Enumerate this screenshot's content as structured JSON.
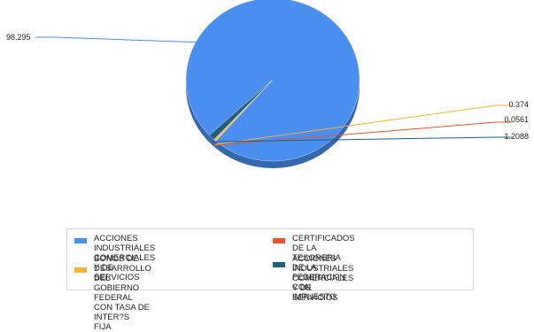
{
  "chart_data": {
    "type": "pie",
    "title": "",
    "legend_position": "bottom",
    "slices": [
      {
        "name": "ACCIONES INDUSTRIALES COMERCIALES Y DE SERVICIOS",
        "value": 98.295,
        "label": "98.295",
        "color": "#4a8ff0"
      },
      {
        "name": "CERTIFICADOS DE LA TESORERIA DE LA FEDERACI?N CON IMPUESTO",
        "value": 0.0561,
        "label": "0.0561",
        "color": "#e8542a"
      },
      {
        "name": "BONOS DE DESARROLLO DEL GOBIERNO FEDERAL CON TASA DE INTER?S FIJA",
        "value": 0.374,
        "label": "0.374",
        "color": "#f5b335"
      },
      {
        "name": "ACCIONES INDUSTRIALES COMERCIALES Y DE SERVICIOS",
        "value": 1.2088,
        "label": "1.2088",
        "color": "#1f5e7e"
      }
    ]
  },
  "legend": {
    "items": [
      {
        "text": "ACCIONES INDUSTRIALES COMERCIALES\nY DE SERVICIOS",
        "color": "#4a8ff0"
      },
      {
        "text": "CERTIFICADOS DE LA TESORERIA\nDE LA FEDERACI?N CON IMPUESTO",
        "color": "#e8542a"
      },
      {
        "text": "BONOS DE DESARROLLO DEL GOBIERNO\nFEDERAL CON TASA DE INTER?S\nFIJA",
        "color": "#f5b335"
      },
      {
        "text": "ACCIONES INDUSTRIALES COMERCIALES\nY DE SERVICIOS",
        "color": "#1f5e7e"
      }
    ]
  }
}
